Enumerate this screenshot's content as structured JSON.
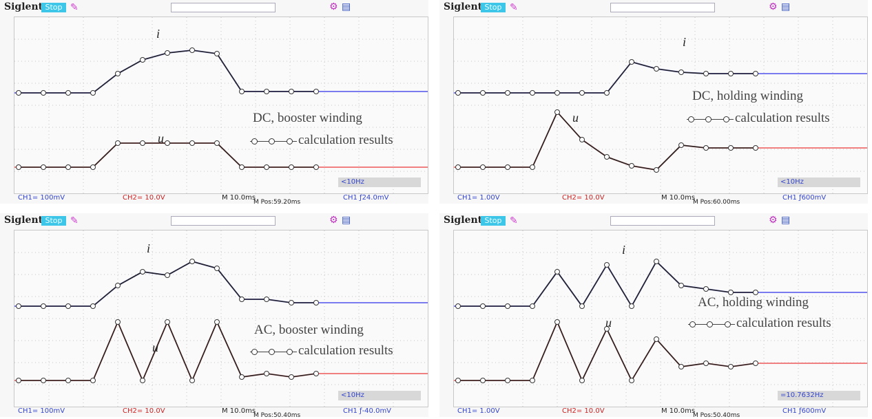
{
  "panels": [
    {
      "brand": "Siglent",
      "stop": "Stop",
      "ch1": "CH1= 100mV",
      "ch2": "CH2= 10.0V",
      "mtime": "M 10.0ms",
      "mpos": "M Pos:59.20ms",
      "trig": "CH1 ƒ24.0mV",
      "freq": "<10Hz",
      "title": "DC, booster winding",
      "legend": "calculation results",
      "i_label": "i",
      "u_label": "u"
    },
    {
      "brand": "Siglent",
      "stop": "Stop",
      "ch1": "CH1= 1.00V",
      "ch2": "CH2= 10.0V",
      "mtime": "M 10.0ms",
      "mpos": "M Pos:60.00ms",
      "trig": "CH1 ƒ600mV",
      "freq": "<10Hz",
      "title": "DC, holding winding",
      "legend": "calculation results",
      "i_label": "i",
      "u_label": "u"
    },
    {
      "brand": "Siglent",
      "stop": "Stop",
      "ch1": "CH1= 100mV",
      "ch2": "CH2= 10.0V",
      "mtime": "M 10.0ms",
      "mpos": "M Pos:50.40ms",
      "trig": "CH1 ƒ-40.0mV",
      "freq": "<10Hz",
      "title": "AC, booster winding",
      "legend": "calculation results",
      "i_label": "i",
      "u_label": "u"
    },
    {
      "brand": "Siglent",
      "stop": "Stop",
      "ch1": "CH1= 1.00V",
      "ch2": "CH2= 10.0V",
      "mtime": "M 10.0ms",
      "mpos": "M Pos:50.40ms",
      "trig": "CH1 ƒ600mV",
      "freq": "=10.7632Hz",
      "title": "AC, holding winding",
      "legend": "calculation results",
      "i_label": "i",
      "u_label": "u"
    }
  ],
  "colors": {
    "ch1": "#7b7bf0",
    "ch2": "#f08080",
    "calc": "#222222",
    "grid": "#c4c4c4"
  },
  "chart_data": [
    {
      "type": "line",
      "grid": true,
      "x": [
        0,
        1,
        2,
        3,
        4,
        5,
        6,
        7,
        8,
        9,
        10,
        11,
        12
      ],
      "series_i_calc": [
        0.1,
        0.1,
        0.1,
        0.1,
        0.38,
        0.58,
        0.68,
        0.72,
        0.67,
        0.12,
        0.12,
        0.12,
        0.12
      ],
      "series_u_calc": [
        0.1,
        0.1,
        0.1,
        0.1,
        0.45,
        0.45,
        0.45,
        0.45,
        0.45,
        0.1,
        0.1,
        0.1,
        0.1
      ]
    },
    {
      "type": "line",
      "grid": true,
      "x": [
        0,
        1,
        2,
        3,
        4,
        5,
        6,
        7,
        8,
        9,
        10,
        11,
        12
      ],
      "series_i_calc": [
        0.1,
        0.1,
        0.1,
        0.1,
        0.1,
        0.1,
        0.1,
        0.55,
        0.45,
        0.4,
        0.38,
        0.38,
        0.38
      ],
      "series_u_calc": [
        0.1,
        0.1,
        0.1,
        0.1,
        0.9,
        0.5,
        0.25,
        0.12,
        0.06,
        0.42,
        0.38,
        0.38,
        0.38
      ]
    },
    {
      "type": "line",
      "grid": true,
      "x": [
        0,
        1,
        2,
        3,
        4,
        5,
        6,
        7,
        8,
        9,
        10,
        11,
        12
      ],
      "series_i_calc": [
        0.1,
        0.1,
        0.1,
        0.1,
        0.4,
        0.6,
        0.55,
        0.75,
        0.65,
        0.2,
        0.2,
        0.15,
        0.15
      ],
      "series_u_calc": [
        0.1,
        0.1,
        0.1,
        0.1,
        0.95,
        0.1,
        0.95,
        0.1,
        0.95,
        0.15,
        0.2,
        0.15,
        0.2
      ]
    },
    {
      "type": "line",
      "grid": true,
      "x": [
        0,
        1,
        2,
        3,
        4,
        5,
        6,
        7,
        8,
        9,
        10,
        11,
        12
      ],
      "series_i_calc": [
        0.1,
        0.1,
        0.1,
        0.1,
        0.6,
        0.1,
        0.7,
        0.1,
        0.75,
        0.4,
        0.35,
        0.3,
        0.3
      ],
      "series_u_calc": [
        0.1,
        0.1,
        0.1,
        0.1,
        0.95,
        0.1,
        0.85,
        0.1,
        0.7,
        0.3,
        0.35,
        0.3,
        0.35
      ]
    }
  ]
}
